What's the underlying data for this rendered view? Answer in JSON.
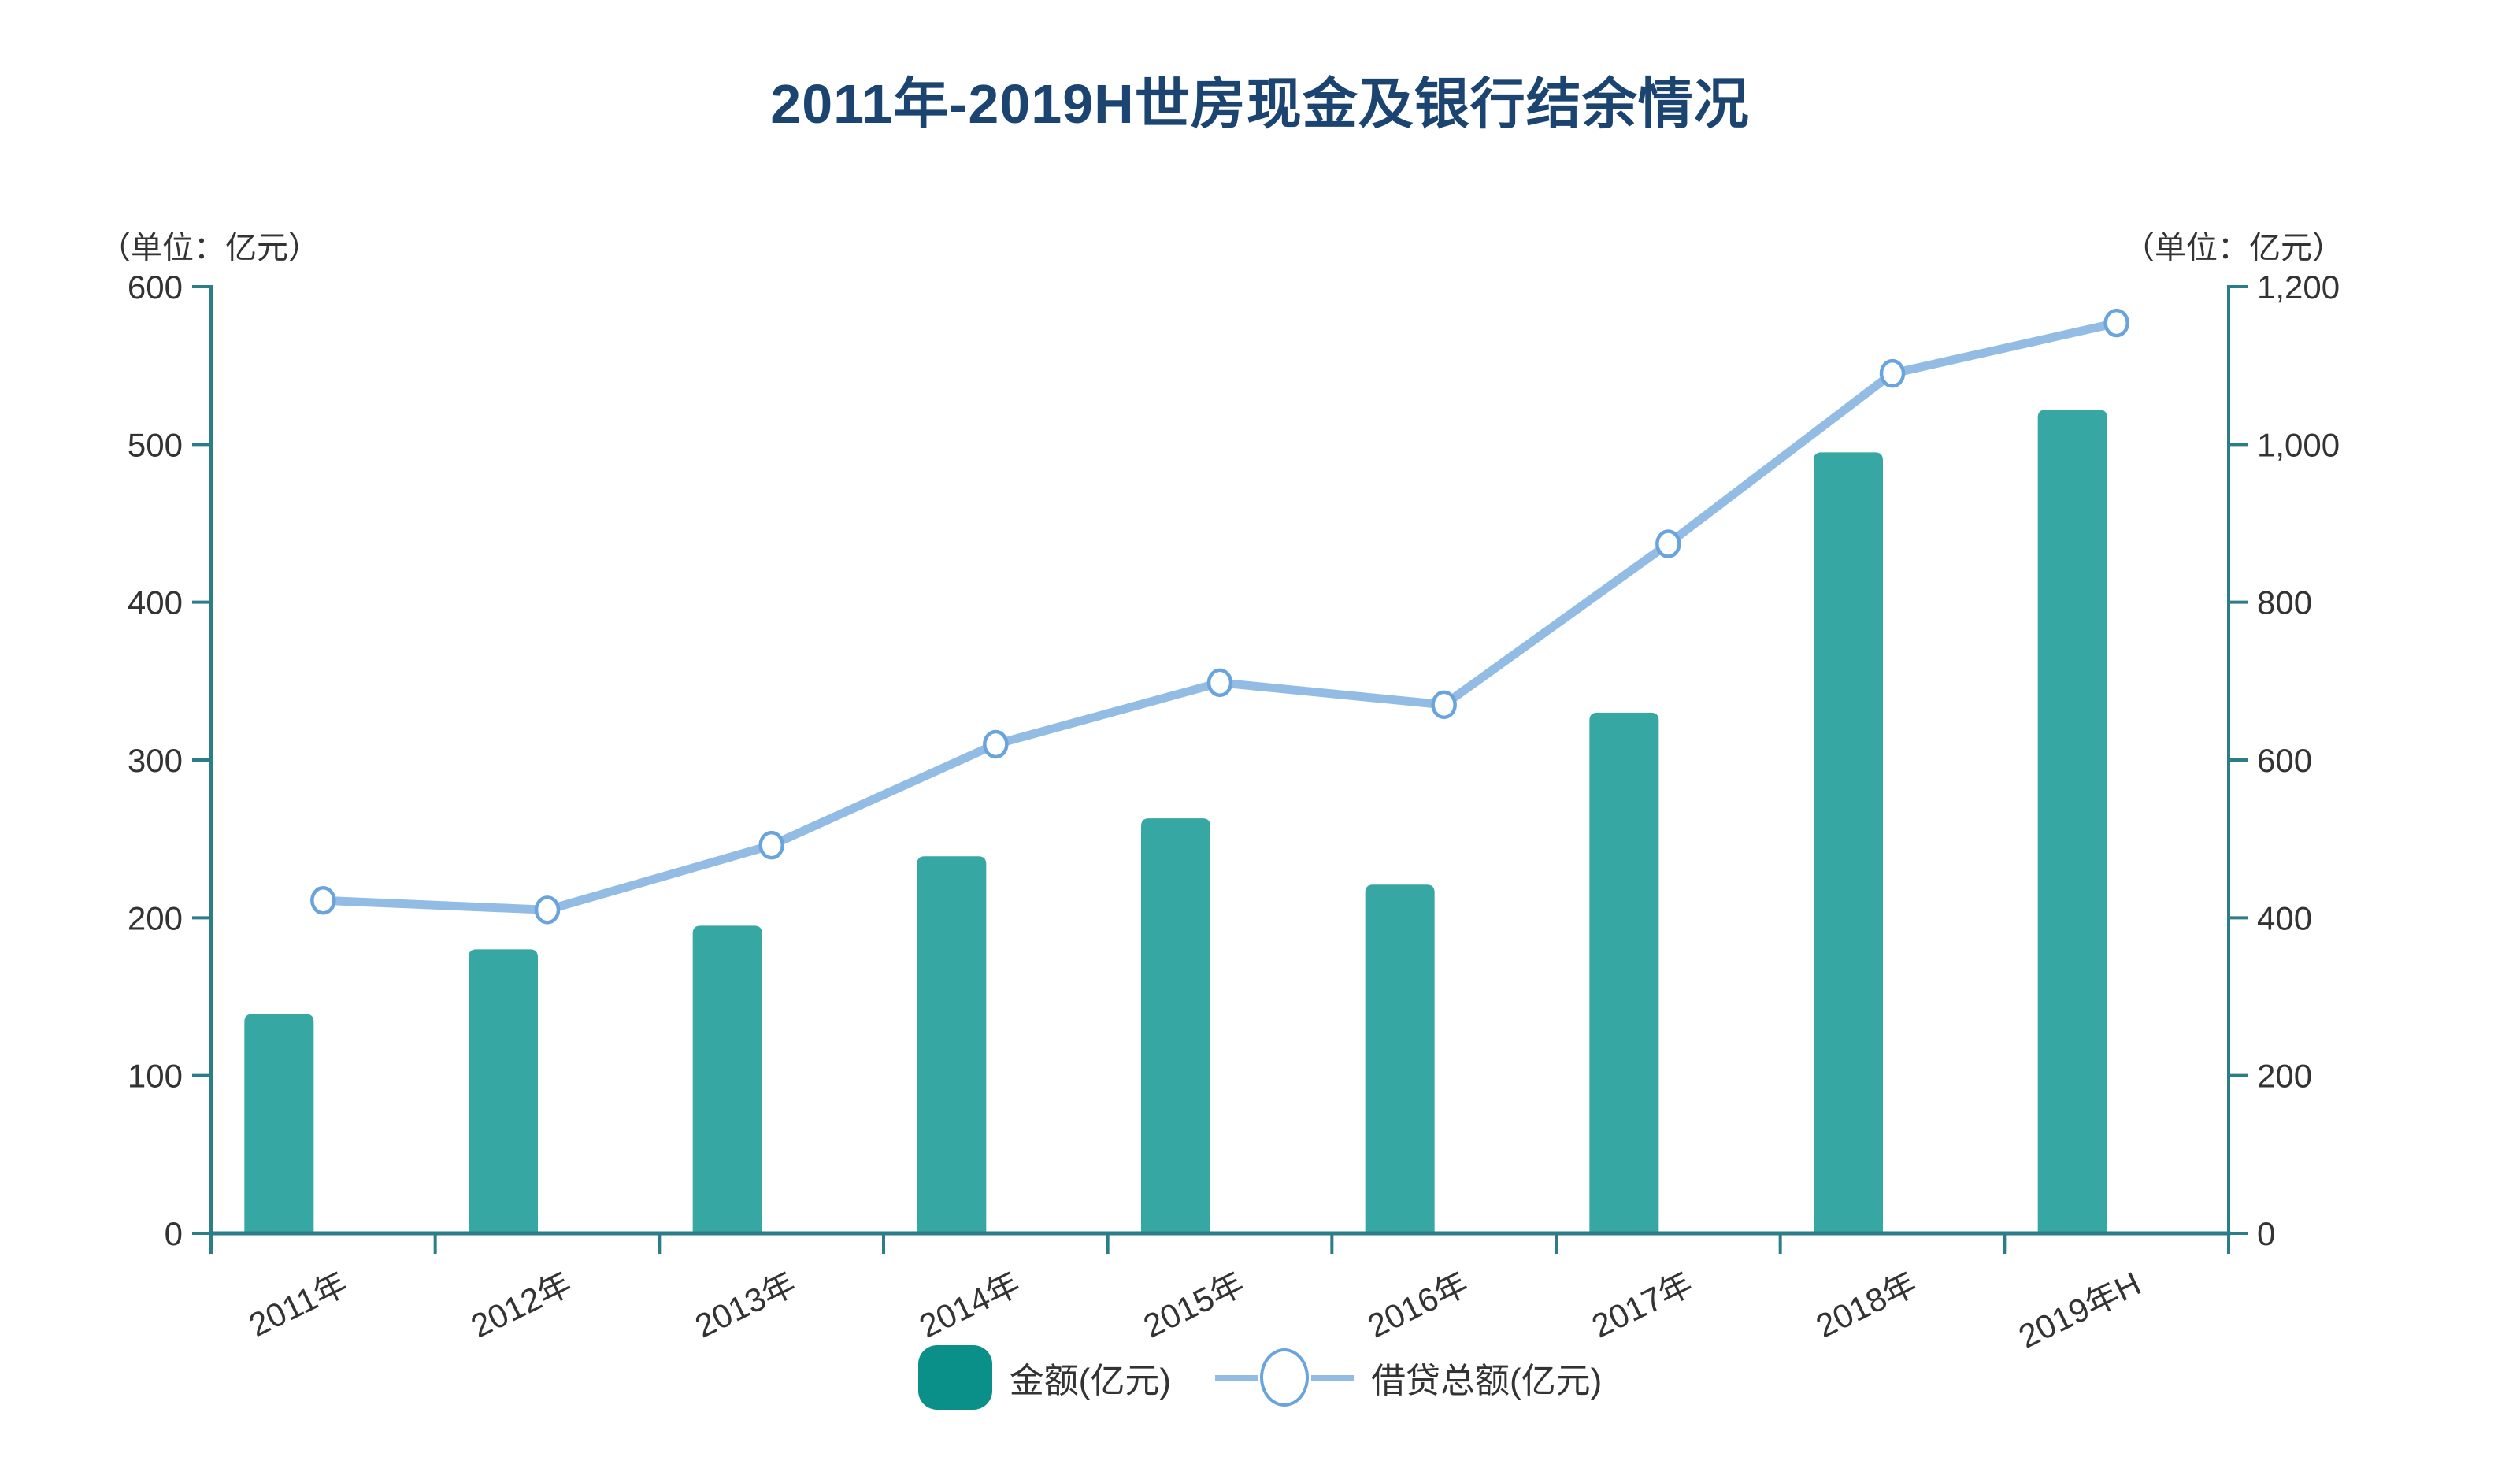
{
  "title": {
    "text": "2011年-2019H世房现金及银行结余情况"
  },
  "left_axis_unit": "（单位：亿元）",
  "right_axis_unit": "（单位：亿元）",
  "legend": {
    "bar_label": "金额(亿元)",
    "line_label": "借贷总额(亿元)"
  },
  "colors": {
    "title": "#1b4471",
    "axis": "#2b7e88",
    "tick_text": "#333333",
    "bar_fill": "#36a7a2",
    "legend_bar_swatch": "#0b8f89",
    "line": "#93bce5",
    "marker_stroke": "#69a4dc",
    "marker_fill": "#ffffff",
    "background": "#ffffff"
  },
  "chart_data": {
    "type": "bar+line combo",
    "title": "2011年-2019H世房现金及银行结余情况",
    "categories": [
      "2011年",
      "2012年",
      "2013年",
      "2014年",
      "2015年",
      "2016年",
      "2017年",
      "2018年",
      "2019年H"
    ],
    "series": [
      {
        "name": "金额(亿元)",
        "type": "bar",
        "y_axis": "left",
        "color": "#36a7a2",
        "values": [
          139,
          180,
          195,
          239,
          263,
          221,
          330,
          495,
          522
        ]
      },
      {
        "name": "借贷总额(亿元)",
        "type": "line",
        "y_axis": "right",
        "color": "#93bce5",
        "marker": "open-circle",
        "marker_fill": "#ffffff",
        "marker_stroke": "#69a4dc",
        "values": [
          422,
          410,
          492,
          620,
          698,
          670,
          874,
          1090,
          1154
        ]
      }
    ],
    "left_axis": {
      "title": "（单位：亿元）",
      "min": 0,
      "max": 600,
      "tick_step": 100,
      "tick_labels": [
        "0",
        "100",
        "200",
        "300",
        "400",
        "500",
        "600"
      ]
    },
    "right_axis": {
      "title": "（单位：亿元）",
      "min": 0,
      "max": 1200,
      "tick_step": 200,
      "tick_labels": [
        "0",
        "200",
        "400",
        "600",
        "800",
        "1,000",
        "1,200"
      ]
    },
    "x_label_rotation_deg": -26,
    "grid": false,
    "legend_position": "bottom"
  }
}
